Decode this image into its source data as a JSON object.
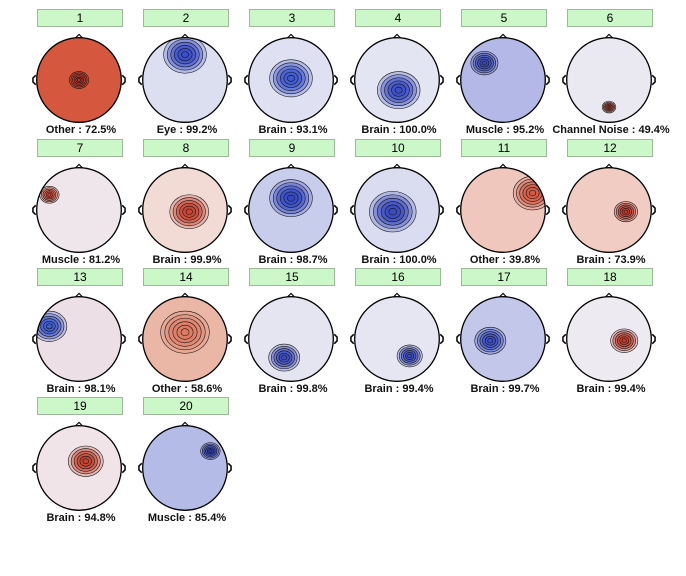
{
  "components": [
    {
      "number": "1",
      "label": "Other : 72.5%",
      "bg": "#d5573e",
      "blob": "#b4342a",
      "bx": 0.5,
      "by": 0.5,
      "br": 0.1
    },
    {
      "number": "2",
      "label": "Eye : 99.2%",
      "bg": "#dcdff0",
      "blob": "#3b4ec9",
      "bx": 0.5,
      "by": 0.2,
      "br": 0.22
    },
    {
      "number": "3",
      "label": "Brain : 93.1%",
      "bg": "#dfe0f1",
      "blob": "#3f5ad3",
      "bx": 0.5,
      "by": 0.48,
      "br": 0.22
    },
    {
      "number": "4",
      "label": "Brain : 100.0%",
      "bg": "#e3e5f3",
      "blob": "#3d4fc8",
      "bx": 0.52,
      "by": 0.62,
      "br": 0.22
    },
    {
      "number": "5",
      "label": "Muscle : 95.2%",
      "bg": "#b3b8e6",
      "blob": "#3949b8",
      "bx": 0.28,
      "by": 0.3,
      "br": 0.14
    },
    {
      "number": "6",
      "label": "Channel Noise : 49.4%",
      "bg": "#eae9f1",
      "blob": "#c03a2a",
      "bx": 0.5,
      "by": 0.82,
      "br": 0.07
    },
    {
      "number": "7",
      "label": "Muscle : 81.2%",
      "bg": "#efe6ec",
      "blob": "#d44a35",
      "bx": 0.15,
      "by": 0.32,
      "br": 0.1
    },
    {
      "number": "8",
      "label": "Brain : 99.9%",
      "bg": "#f2dad5",
      "blob": "#c94331",
      "bx": 0.55,
      "by": 0.52,
      "br": 0.2
    },
    {
      "number": "9",
      "label": "Brain : 98.7%",
      "bg": "#c9cdec",
      "blob": "#3549c8",
      "bx": 0.5,
      "by": 0.36,
      "br": 0.22
    },
    {
      "number": "10",
      "label": "Brain : 100.0%",
      "bg": "#dadcf0",
      "blob": "#3b4bc0",
      "bx": 0.45,
      "by": 0.52,
      "br": 0.24
    },
    {
      "number": "11",
      "label": "Other : 39.8%",
      "bg": "#f0c7bd",
      "blob": "#d25a44",
      "bx": 0.85,
      "by": 0.3,
      "br": 0.2
    },
    {
      "number": "12",
      "label": "Brain : 73.9%",
      "bg": "#f0ccc3",
      "blob": "#c3382a",
      "bx": 0.7,
      "by": 0.52,
      "br": 0.12
    },
    {
      "number": "13",
      "label": "Brain : 98.1%",
      "bg": "#eddfe6",
      "blob": "#3e5bd0",
      "bx": 0.15,
      "by": 0.35,
      "br": 0.18
    },
    {
      "number": "14",
      "label": "Other : 58.6%",
      "bg": "#eab7a6",
      "blob": "#dd7a63",
      "bx": 0.5,
      "by": 0.42,
      "br": 0.25
    },
    {
      "number": "15",
      "label": "Brain : 99.8%",
      "bg": "#e5e5f2",
      "blob": "#3d4dbf",
      "bx": 0.42,
      "by": 0.72,
      "br": 0.16
    },
    {
      "number": "16",
      "label": "Brain : 99.4%",
      "bg": "#e6e6f2",
      "blob": "#3b4bbd",
      "bx": 0.65,
      "by": 0.7,
      "br": 0.13
    },
    {
      "number": "17",
      "label": "Brain : 99.7%",
      "bg": "#c3c8ea",
      "blob": "#3a4fc9",
      "bx": 0.35,
      "by": 0.52,
      "br": 0.16
    },
    {
      "number": "18",
      "label": "Brain : 99.4%",
      "bg": "#eeeaf1",
      "blob": "#c53b2a",
      "bx": 0.68,
      "by": 0.52,
      "br": 0.14
    },
    {
      "number": "19",
      "label": "Brain : 94.8%",
      "bg": "#f1e4e8",
      "blob": "#c6432f",
      "bx": 0.58,
      "by": 0.42,
      "br": 0.18
    },
    {
      "number": "20",
      "label": "Muscle : 85.4%",
      "bg": "#b5bbe7",
      "blob": "#2f3fae",
      "bx": 0.8,
      "by": 0.3,
      "br": 0.1
    }
  ]
}
